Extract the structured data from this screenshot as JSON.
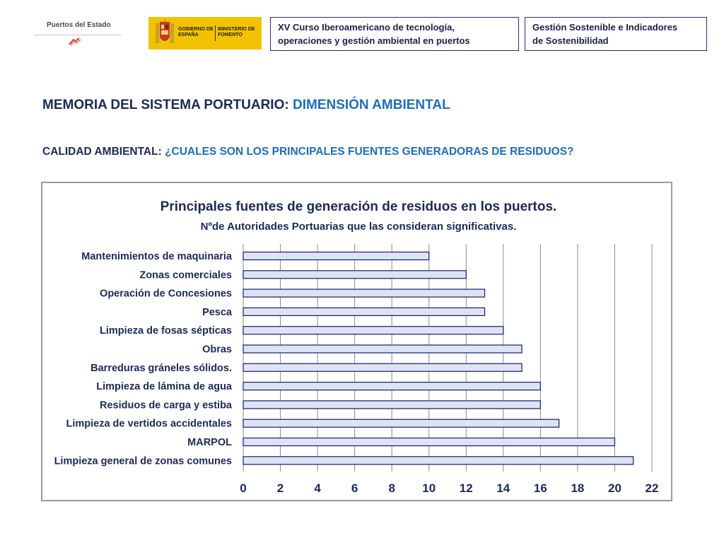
{
  "header": {
    "logo_left_text": "Puertos del Estado",
    "logo_gov_text_1": "GOBIERNO DE ESPAÑA",
    "logo_gov_text_2": "MINISTERIO DE FOMENTO",
    "box1_line1": "XV Curso Iberoamericano de tecnología,",
    "box1_line2": "operaciones y gestión ambiental en puertos",
    "box2_line1": "Gestión Sostenible e Indicadores",
    "box2_line2": "de Sostenibilidad"
  },
  "page": {
    "title_part1": "MEMORIA DEL SISTEMA PORTUARIO: ",
    "title_part2": "DIMENSIÓN AMBIENTAL",
    "subtitle_part1": "CALIDAD AMBIENTAL: ",
    "subtitle_part2": "¿CUALES SON LOS PRINCIPALES  FUENTES GENERADORAS DE RESIDUOS?"
  },
  "colors": {
    "title_dark": "#1b2a55",
    "title_blue": "#1f6db5",
    "bar_fill": "#dde3f2",
    "bar_stroke": "#1a1a6e",
    "gov_yellow": "#f2c200"
  },
  "chart_data": {
    "type": "bar",
    "orientation": "horizontal",
    "title": "Principales fuentes de generación de residuos en los puertos.",
    "subtitle": "Nºde Autoridades Portuarias que las consideran significativas.",
    "categories": [
      "Mantenimientos de maquinaria",
      "Zonas comerciales",
      "Operación de Concesiones",
      "Pesca",
      "Limpieza de fosas sépticas",
      "Obras",
      "Barreduras gráneles sólidos.",
      "Limpieza de lámina de agua",
      "Residuos de carga y estiba",
      "Limpieza de vertidos accidentales",
      "MARPOL",
      "Limpieza general de zonas comunes"
    ],
    "values": [
      10,
      12,
      13,
      13,
      14,
      15,
      15,
      16,
      16,
      17,
      20,
      21
    ],
    "xlim": [
      0,
      22
    ],
    "xticks": [
      "0",
      "2",
      "4",
      "6",
      "8",
      "10",
      "12",
      "14",
      "16",
      "18",
      "20",
      "22"
    ],
    "grid": true,
    "xlabel": "",
    "ylabel": ""
  }
}
